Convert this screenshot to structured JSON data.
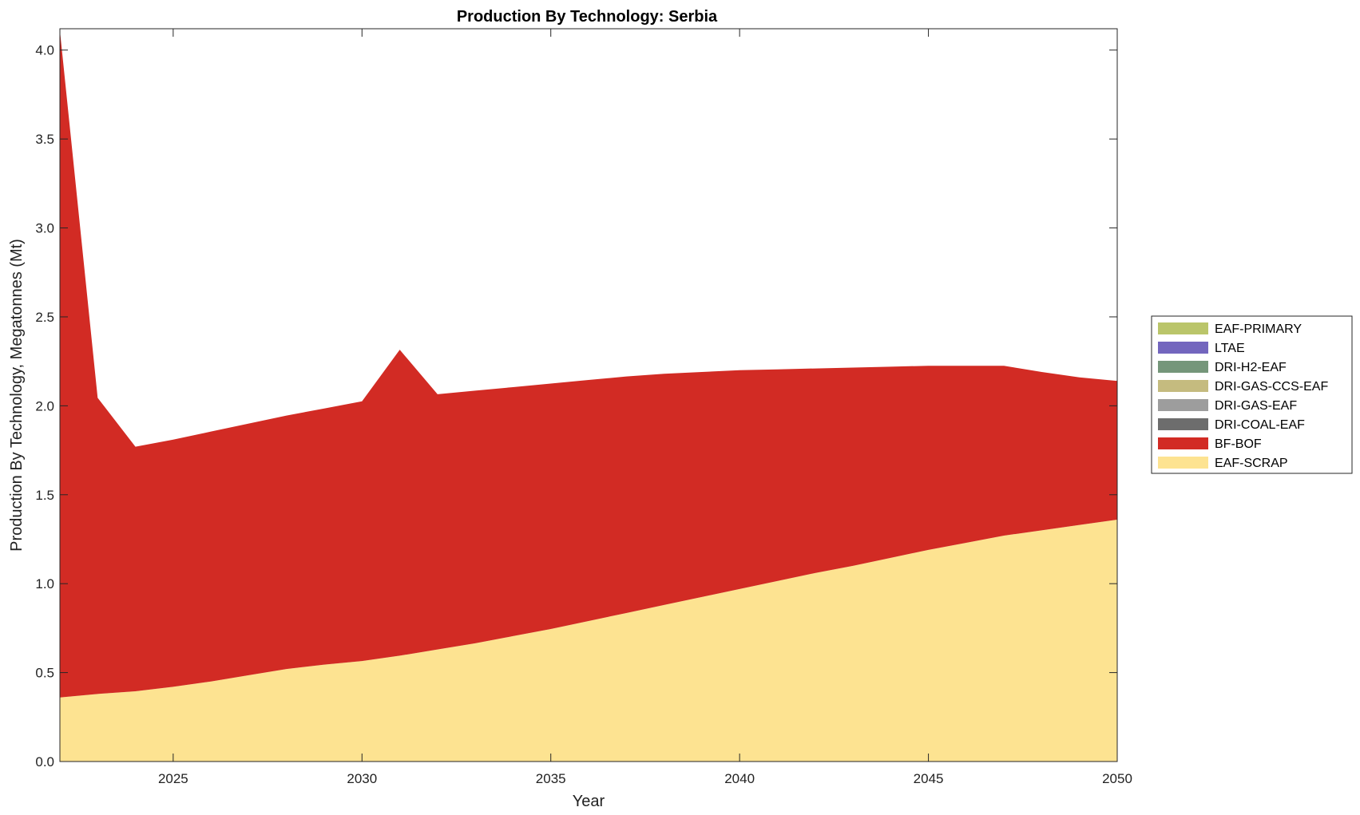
{
  "chart_data": {
    "type": "area",
    "title": "Production By Technology: Serbia",
    "xlabel": "Year",
    "ylabel": "Production By Technology, Megatonnes (Mt)",
    "xlim": [
      2022,
      2050
    ],
    "ylim": [
      0,
      4.12
    ],
    "xticks": [
      2025,
      2030,
      2035,
      2040,
      2045,
      2050
    ],
    "xtick_labels": [
      "2025",
      "2030",
      "2035",
      "2040",
      "2045",
      "2050"
    ],
    "yticks": [
      0,
      0.5,
      1,
      1.5,
      2,
      2.5,
      3,
      3.5,
      4
    ],
    "ytick_labels": [
      "0.0",
      "0.5",
      "1.0",
      "1.5",
      "2.0",
      "2.5",
      "3.0",
      "3.5",
      "4.0"
    ],
    "grid": false,
    "legend_position": "right",
    "x": [
      2022,
      2023,
      2024,
      2025,
      2026,
      2027,
      2028,
      2029,
      2030,
      2031,
      2032,
      2033,
      2034,
      2035,
      2036,
      2037,
      2038,
      2039,
      2040,
      2041,
      2042,
      2043,
      2044,
      2045,
      2046,
      2047,
      2048,
      2049,
      2050
    ],
    "series": [
      {
        "name": "EAF-SCRAP",
        "color": "#fde391",
        "values": [
          0.36,
          0.38,
          0.395,
          0.42,
          0.45,
          0.485,
          0.52,
          0.545,
          0.565,
          0.595,
          0.63,
          0.665,
          0.705,
          0.745,
          0.79,
          0.835,
          0.88,
          0.925,
          0.97,
          1.015,
          1.06,
          1.1,
          1.145,
          1.19,
          1.23,
          1.27,
          1.3,
          1.33,
          1.36
        ]
      },
      {
        "name": "BF-BOF",
        "color": "#d22b24",
        "values": [
          3.75,
          1.665,
          1.375,
          1.39,
          1.405,
          1.415,
          1.425,
          1.44,
          1.46,
          1.72,
          1.435,
          1.42,
          1.4,
          1.38,
          1.355,
          1.33,
          1.3,
          1.265,
          1.23,
          1.19,
          1.15,
          1.115,
          1.075,
          1.035,
          0.995,
          0.955,
          0.89,
          0.83,
          0.78
        ]
      },
      {
        "name": "DRI-COAL-EAF",
        "color": "#6d6d6d",
        "values": [
          0,
          0,
          0,
          0,
          0,
          0,
          0,
          0,
          0,
          0,
          0,
          0,
          0,
          0,
          0,
          0,
          0,
          0,
          0,
          0,
          0,
          0,
          0,
          0,
          0,
          0,
          0,
          0,
          0
        ]
      },
      {
        "name": "DRI-GAS-EAF",
        "color": "#9d9d9d",
        "values": [
          0,
          0,
          0,
          0,
          0,
          0,
          0,
          0,
          0,
          0,
          0,
          0,
          0,
          0,
          0,
          0,
          0,
          0,
          0,
          0,
          0,
          0,
          0,
          0,
          0,
          0,
          0,
          0,
          0
        ]
      },
      {
        "name": "DRI-GAS-CCS-EAF",
        "color": "#c5bb7f",
        "values": [
          0,
          0,
          0,
          0,
          0,
          0,
          0,
          0,
          0,
          0,
          0,
          0,
          0,
          0,
          0,
          0,
          0,
          0,
          0,
          0,
          0,
          0,
          0,
          0,
          0,
          0,
          0,
          0,
          0
        ]
      },
      {
        "name": "DRI-H2-EAF",
        "color": "#75967a",
        "values": [
          0,
          0,
          0,
          0,
          0,
          0,
          0,
          0,
          0,
          0,
          0,
          0,
          0,
          0,
          0,
          0,
          0,
          0,
          0,
          0,
          0,
          0,
          0,
          0,
          0,
          0,
          0,
          0,
          0
        ]
      },
      {
        "name": "LTAE",
        "color": "#7366be",
        "values": [
          0,
          0,
          0,
          0,
          0,
          0,
          0,
          0,
          0,
          0,
          0,
          0,
          0,
          0,
          0,
          0,
          0,
          0,
          0,
          0,
          0,
          0,
          0,
          0,
          0,
          0,
          0,
          0,
          0
        ]
      },
      {
        "name": "EAF-PRIMARY",
        "color": "#bac56a",
        "values": [
          0,
          0,
          0,
          0,
          0,
          0,
          0,
          0,
          0,
          0,
          0,
          0,
          0,
          0,
          0,
          0,
          0,
          0,
          0,
          0,
          0,
          0,
          0,
          0,
          0,
          0,
          0,
          0,
          0
        ]
      }
    ],
    "legend_order": [
      "EAF-PRIMARY",
      "LTAE",
      "DRI-H2-EAF",
      "DRI-GAS-CCS-EAF",
      "DRI-GAS-EAF",
      "DRI-COAL-EAF",
      "BF-BOF",
      "EAF-SCRAP"
    ]
  }
}
